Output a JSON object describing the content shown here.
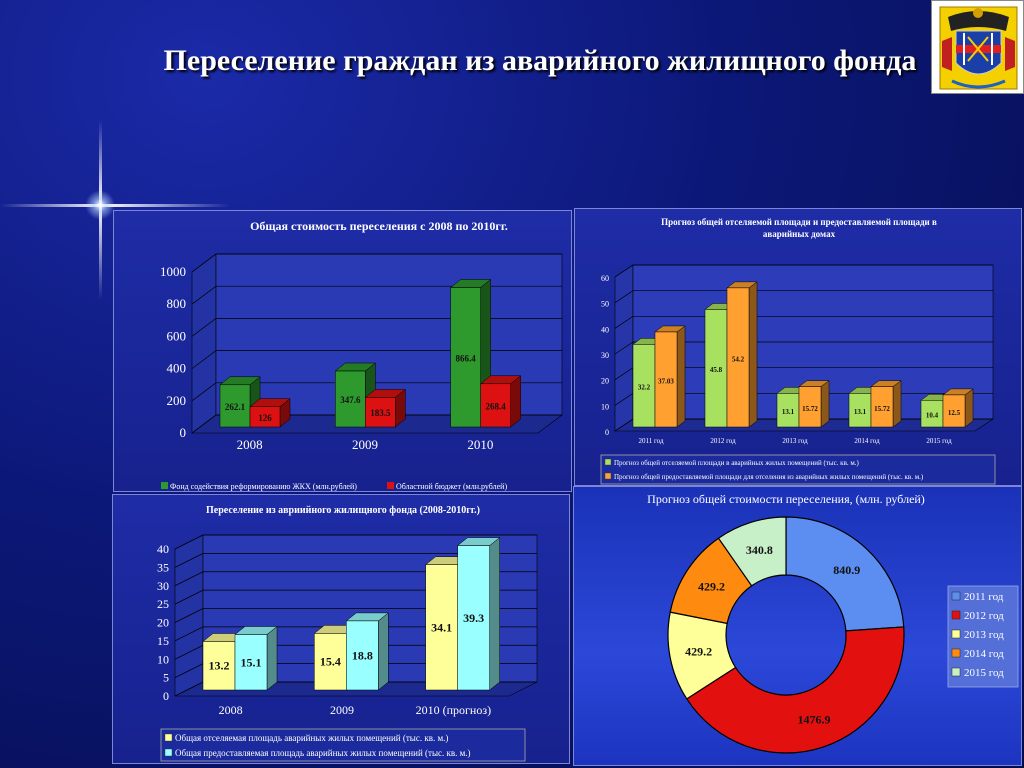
{
  "slide": {
    "title": "Переселение граждан из аварийного жилищного фонда"
  },
  "colors": {
    "green": "#2e9a2e",
    "red": "#dd1111",
    "light_green": "#a8e060",
    "orange": "#ffa030",
    "yellow": "#ffff99",
    "cyan": "#99ffff",
    "donut_blue": "#5b8ef0",
    "donut_red": "#e31010",
    "donut_yellow": "#ffff99",
    "donut_orange": "#ff8a10",
    "donut_green": "#c8f0c8"
  },
  "chart_data": [
    {
      "id": "cost-chart",
      "type": "bar",
      "title": "Общая стоимость переселения с 2008 по 2010гг.",
      "categories": [
        "2008",
        "2009",
        "2010"
      ],
      "series": [
        {
          "name": "Фонд содействия реформированию ЖКХ (млн.рублей)",
          "values": [
            262.1,
            347.6,
            866.4
          ],
          "labels": [
            "262.1",
            "347.6",
            "866.4"
          ]
        },
        {
          "name": "Областной бюджет (млн.рублей)",
          "values": [
            126,
            183.5,
            268.4
          ],
          "labels": [
            "126",
            "183.5",
            "268.4"
          ]
        }
      ],
      "yticks": [
        "0",
        "200",
        "400",
        "600",
        "800",
        "1000"
      ],
      "ylim": [
        0,
        1000
      ],
      "legend": "bottom"
    },
    {
      "id": "area-forecast-chart",
      "type": "bar",
      "title": "Прогноз общей отселяемой площади и предоставляемой площади в аварийных домах",
      "categories": [
        "2011 год",
        "2012 год",
        "2013 год",
        "2014 год",
        "2015 год"
      ],
      "series": [
        {
          "name": "Прогноз общей отселяемой площади в аварийных жилых помещений (тыс. кв. м.)",
          "values": [
            32.2,
            45.8,
            13.1,
            13.1,
            10.4
          ],
          "labels": [
            "32.2",
            "45.8",
            "13.1",
            "13.1",
            "10.4"
          ]
        },
        {
          "name": "Прогноз общей предоставляемой площади для отселения из аварийных жилых помещений (тыс. кв. м.)",
          "values": [
            37.03,
            54.2,
            15.72,
            15.72,
            12.5
          ],
          "labels": [
            "37.03",
            "54.2",
            "15.72",
            "15.72",
            "12.5"
          ]
        }
      ],
      "yticks": [
        "0",
        "10",
        "20",
        "30",
        "40",
        "50",
        "60"
      ],
      "ylim": [
        0,
        60
      ],
      "legend": "bottom"
    },
    {
      "id": "resettlement-chart",
      "type": "bar",
      "title": "Переселение из авриийного жилищного фонда (2008-2010гг.)",
      "categories": [
        "2008",
        "2009",
        "2010 (прогноз)"
      ],
      "series": [
        {
          "name": "Общая отселяемая площадь аварийных жилых помещений (тыс. кв. м.)",
          "values": [
            13.2,
            15.4,
            34.1
          ],
          "labels": [
            "13.2",
            "15.4",
            "34.1"
          ]
        },
        {
          "name": "Общая предоставляемая площадь аварийных жилых помещений (тыс. кв. м.)",
          "values": [
            15.1,
            18.8,
            39.3
          ],
          "labels": [
            "15.1",
            "18.8",
            "39.3"
          ]
        }
      ],
      "yticks": [
        "0",
        "5",
        "10",
        "15",
        "20",
        "25",
        "30",
        "35",
        "40"
      ],
      "ylim": [
        0,
        40
      ],
      "legend": "bottom"
    },
    {
      "id": "cost-forecast-donut",
      "type": "pie",
      "title": "Прогноз общей стоимости переселения, (млн.  рублей)",
      "categories": [
        "2011 год",
        "2012 год",
        "2013 год",
        "2014 год",
        "2015 год"
      ],
      "values": [
        840.9,
        1476.9,
        429.2,
        429.2,
        340.8
      ],
      "labels": [
        "840.9",
        "1476.9",
        "429.2",
        "429.2",
        "340.8"
      ],
      "legend": "right"
    }
  ]
}
